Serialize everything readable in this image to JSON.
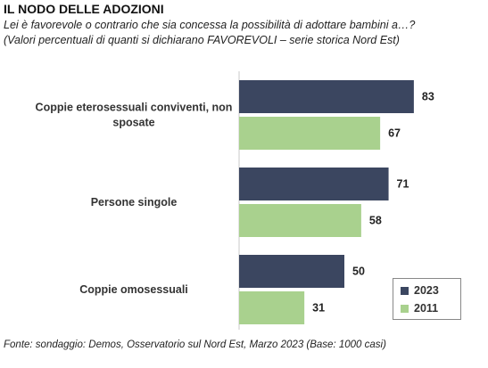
{
  "title": "IL NODO DELLE ADOZIONI",
  "subtitle_line1": "Lei è favorevole o contrario che sia concessa la possibilità di adottare bambini a…?",
  "subtitle_line2": "(Valori percentuali di quanti si dichiarano FAVOREVOLI – serie storica Nord Est)",
  "source": "Fonte: sondaggio: Demos, Osservatorio sul Nord Est, Marzo 2023 (Base: 1000 casi)",
  "chart_data": {
    "type": "bar",
    "orientation": "horizontal",
    "categories": [
      [
        "Coppie eterosessuali conviventi, non",
        "sposate"
      ],
      [
        "Persone singole"
      ],
      [
        "Coppie omosessuali"
      ]
    ],
    "series": [
      {
        "name": "2023",
        "values": [
          83,
          71,
          50
        ],
        "color": "#3b4660"
      },
      {
        "name": "2011",
        "values": [
          67,
          58,
          31
        ],
        "color": "#a9d18e"
      }
    ],
    "xlim": [
      0,
      100
    ],
    "grid": false,
    "legend_position": "bottom-right"
  }
}
